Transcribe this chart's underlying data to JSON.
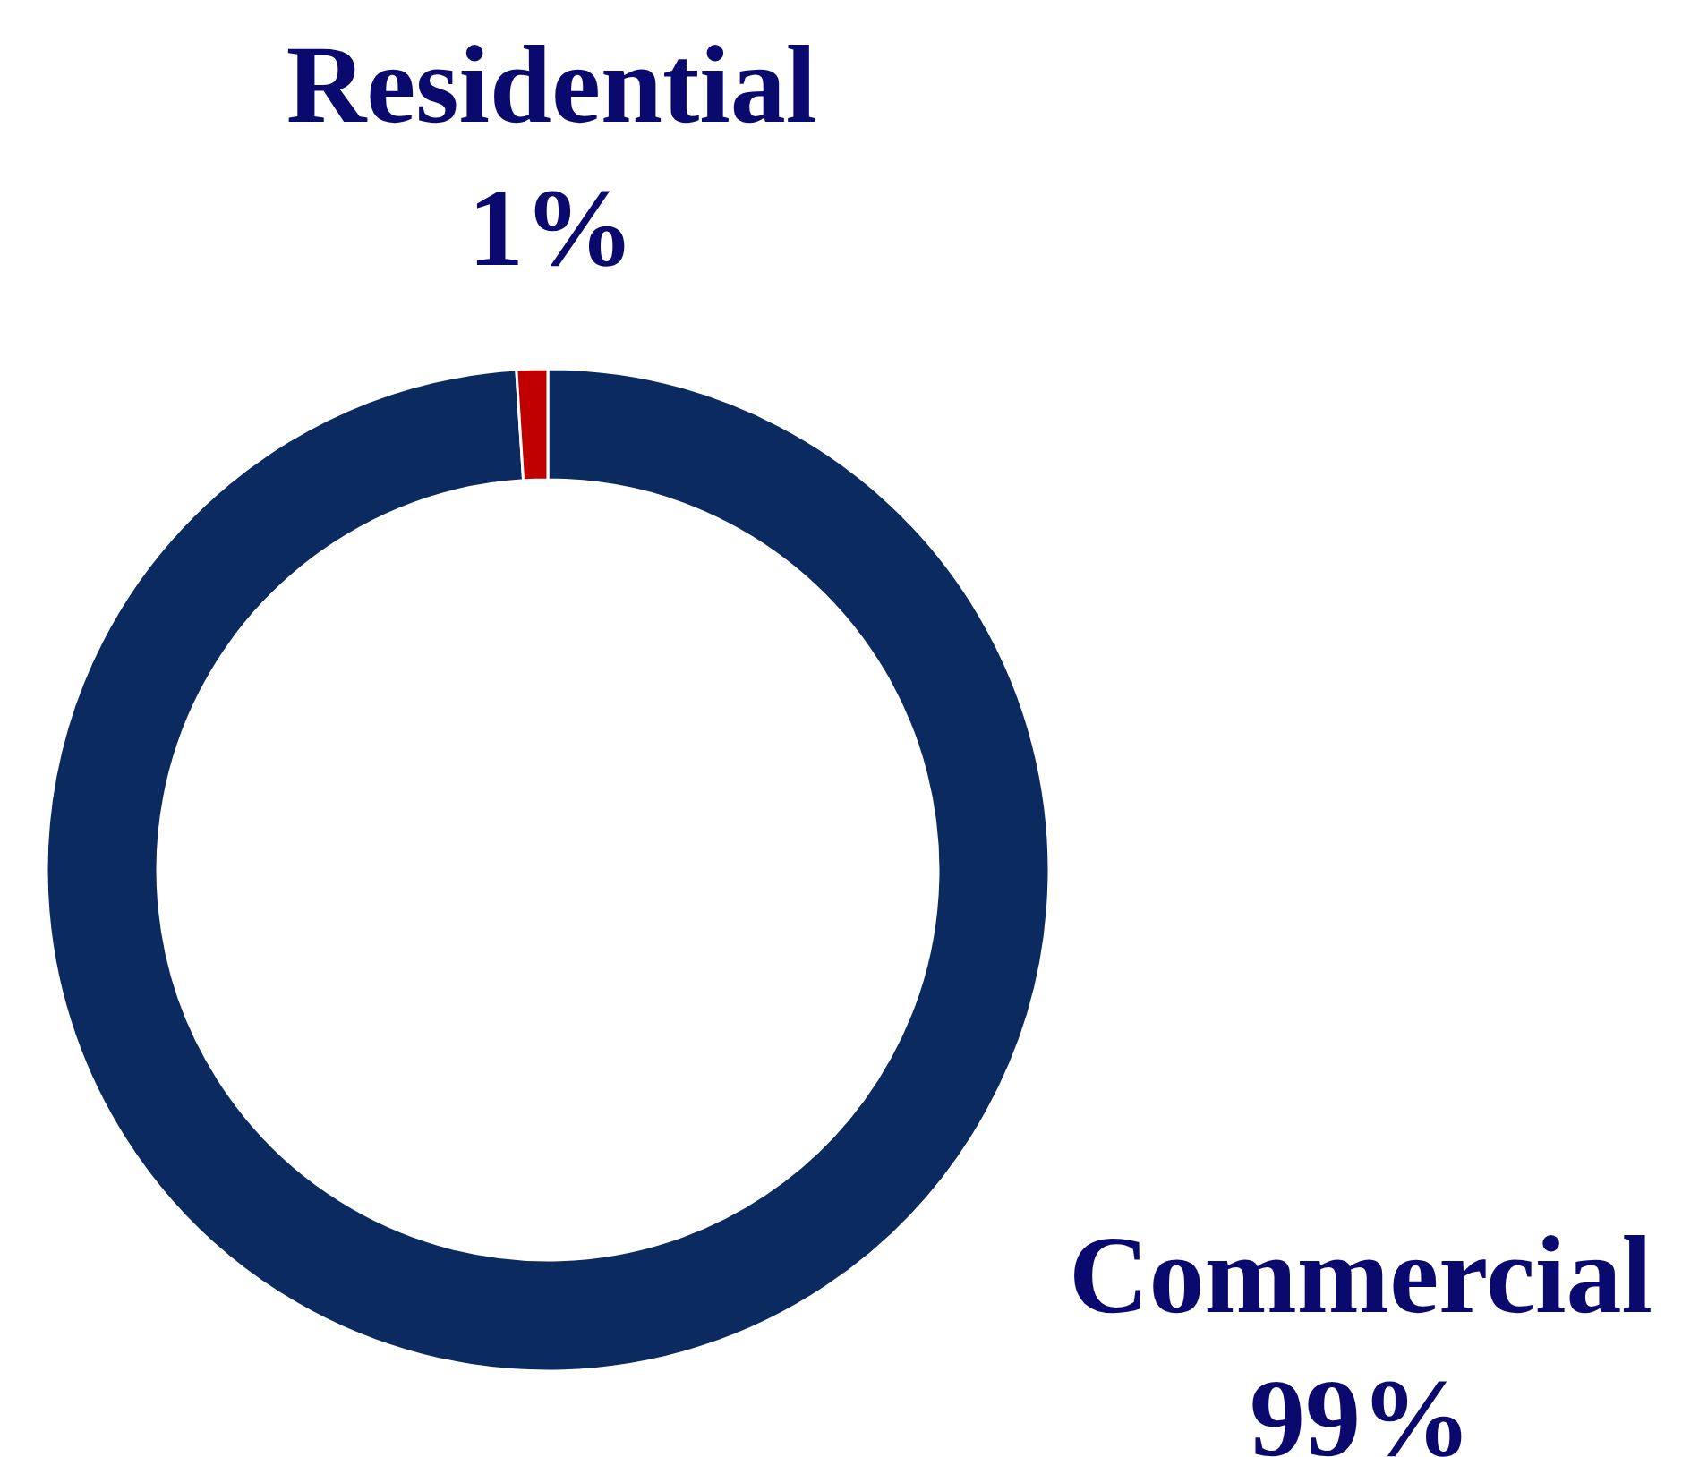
{
  "chart_data": {
    "type": "donut",
    "categories": [
      "Commercial",
      "Residential"
    ],
    "values": [
      99,
      1
    ],
    "colors": [
      "#0b2a5f",
      "#c00000"
    ],
    "value_labels": [
      "99%",
      "1%"
    ],
    "legend": false
  }
}
